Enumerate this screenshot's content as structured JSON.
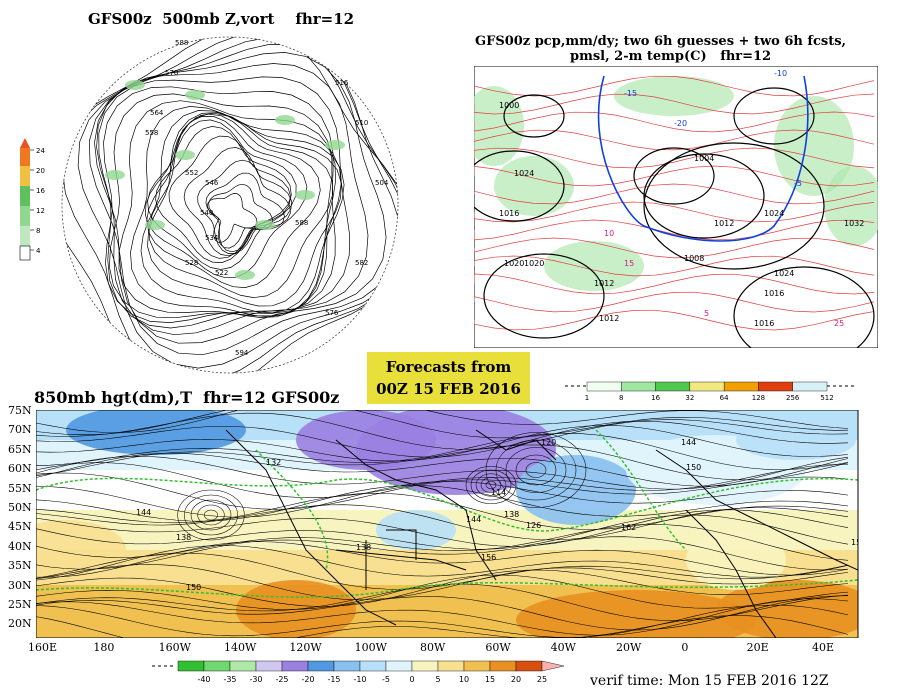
{
  "panels": {
    "top_left": {
      "title": "GFS00z  500mb Z,vort    fhr=12",
      "colorbar_ticks": [
        "24",
        "20",
        "16",
        "12",
        "8",
        "4"
      ],
      "colorbar_colors": [
        "#f07820",
        "#f0c040",
        "#60c060",
        "#90d890",
        "#c0e8c0",
        "#ffffff"
      ],
      "contour_labels": [
        "588",
        "570",
        "564",
        "558",
        "552",
        "546",
        "540",
        "534",
        "528",
        "522",
        "516",
        "510",
        "504",
        "582",
        "576",
        "594",
        "588"
      ]
    },
    "top_right": {
      "title_line1": "GFS00z pcp,mm/dy; two 6h guesses + two 6h fcsts,",
      "title_line2": "pmsl, 2-m temp(C)   fhr=12",
      "colorbar_ticks": [
        "1",
        "8",
        "16",
        "32",
        "64",
        "128",
        "256",
        "512"
      ],
      "colorbar_colors": [
        "#f0fff0",
        "#a0e8a0",
        "#50c850",
        "#f0e880",
        "#f0a000",
        "#e04010",
        "#d8f0f8"
      ],
      "isobar_labels": [
        "1000",
        "1016",
        "1024",
        "1020",
        "1024",
        "1032",
        "1012",
        "1008",
        "1004",
        "1012",
        "1016",
        "1024",
        "1020",
        "1016",
        "1012"
      ],
      "temp_labels": [
        "-10",
        "-15",
        "-20",
        "-5",
        "10",
        "15",
        "25",
        "5"
      ]
    },
    "banner": {
      "line1": "Forecasts from",
      "line2": "00Z 15 FEB 2016"
    },
    "bottom": {
      "title": "850mb hgt(dm),T  fhr=12 GFS00z",
      "lat_labels": [
        "75N",
        "70N",
        "65N",
        "60N",
        "55N",
        "50N",
        "45N",
        "40N",
        "35N",
        "30N",
        "25N",
        "20N"
      ],
      "lon_labels": [
        "160E",
        "180",
        "160W",
        "140W",
        "120W",
        "100W",
        "80W",
        "60W",
        "40W",
        "20W",
        "0",
        "20E",
        "40E"
      ],
      "height_labels": [
        "132",
        "120",
        "144",
        "114",
        "150",
        "138",
        "126",
        "144",
        "138",
        "156",
        "162",
        "150",
        "144",
        "138",
        "156"
      ],
      "colorbar_ticks": [
        "-40",
        "-35",
        "-30",
        "-25",
        "-20",
        "-15",
        "-10",
        "-5",
        "0",
        "5",
        "10",
        "15",
        "20",
        "25"
      ],
      "colorbar_colors": [
        "#30c030",
        "#70d870",
        "#b0e8a8",
        "#d0c8f0",
        "#9a80e0",
        "#5098e0",
        "#88c0f0",
        "#b8e0f8",
        "#e0f4fc",
        "#f8f4c0",
        "#f8e090",
        "#f0c050",
        "#e89020",
        "#d85010",
        "#f8b0b0"
      ],
      "verif_time": "verif time: Mon 15 FEB 2016 12Z"
    }
  }
}
